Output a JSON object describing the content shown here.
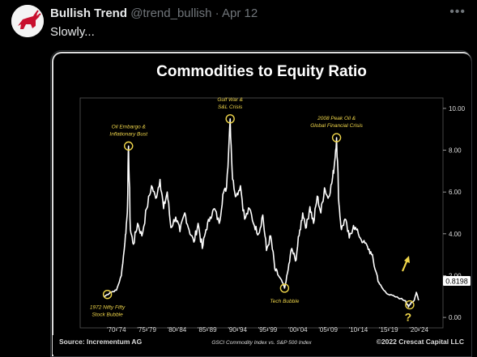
{
  "tweet": {
    "author_name": "Bullish Trend",
    "handle": "@trend_bullish",
    "separator": "·",
    "date": "Apr 12",
    "text": "Slowly...",
    "more_icon": "more-icon"
  },
  "chart_data": {
    "type": "line",
    "title": "Commodities to Equity Ratio",
    "xlabel": "GSCI Commodity Index vs. S&P 500 Index",
    "source": "Source: Incrementum AG",
    "copyright": "©2022 Crescat Capital LLC",
    "x_ticks": [
      "'70-'74",
      "'75-'79",
      "'80-'84",
      "'85-'89",
      "'90-'94",
      "'95-'99",
      "'00-'04",
      "'05-'09",
      "'10-'14",
      "'15-'19",
      "'20-'24"
    ],
    "y_ticks": [
      "10.00",
      "8.00",
      "6.00",
      "4.00",
      "2.00",
      "0.00"
    ],
    "ylim": [
      -0.5,
      10.5
    ],
    "current_value_label": "0.8198",
    "annotations": [
      {
        "text": "Oil Embargo & Inflationary Bust",
        "line1": "Oil Embargo &",
        "line2": "Inflationary Bust",
        "x": 1974.0,
        "y": 8.2
      },
      {
        "text": "Gulf War & S&L Crisis",
        "line1": "Gulf War &",
        "line2": "S&L Crisis",
        "x": 1990.8,
        "y": 9.5
      },
      {
        "text": "2008 Peak Oil & Global Financial Crisis",
        "line1": "2008 Peak Oil &",
        "line2": "Global Financial Crisis",
        "x": 2008.4,
        "y": 8.6
      },
      {
        "text": "1972 Nifty Fifty Stock Bubble",
        "line1": "1972 Nifty Fifty",
        "line2": "Stock Bubble",
        "x": 1970.5,
        "y": 1.1
      },
      {
        "text": "Tech Bubble",
        "line1": "Tech Bubble",
        "line2": "",
        "x": 1999.8,
        "y": 1.4
      },
      {
        "text": "?",
        "line1": "?",
        "line2": "",
        "x": 2020.5,
        "y": 0.6
      }
    ],
    "series": [
      {
        "x": [
          1970,
          1971,
          1972,
          1972.8,
          1973.4,
          1973.8,
          1974.0,
          1974.3,
          1974.8,
          1975.5,
          1976.2,
          1977.0,
          1977.8,
          1978.5,
          1979.2,
          1979.8,
          1980.4,
          1981.0,
          1981.8,
          1982.5,
          1983.3,
          1984.0,
          1984.8,
          1985.5,
          1986.2,
          1986.8,
          1987.5,
          1988.2,
          1989.0,
          1989.6,
          1990.2,
          1990.8,
          1991.2,
          1991.8,
          1992.5,
          1993.2,
          1994.0,
          1994.8,
          1995.5,
          1996.2,
          1996.8,
          1997.5,
          1998.2,
          1998.8,
          1999.4,
          1999.8,
          2000.4,
          2001.0,
          2001.6,
          2002.2,
          2002.8,
          2003.4,
          2004.0,
          2004.6,
          2005.2,
          2005.8,
          2006.4,
          2007.0,
          2007.6,
          2008.0,
          2008.4,
          2008.8,
          2009.2,
          2009.8,
          2010.5,
          2011.2,
          2012.0,
          2012.8,
          2013.5,
          2014.2,
          2014.9,
          2015.5,
          2016.2,
          2017.0,
          2018.0,
          2019.0,
          2019.8,
          2020.3,
          2020.7,
          2021.2,
          2021.6,
          2022.0
        ],
        "values": [
          1.0,
          1.2,
          1.3,
          2.0,
          3.6,
          5.0,
          8.2,
          4.2,
          3.5,
          4.5,
          3.9,
          5.2,
          6.3,
          5.7,
          6.6,
          5.2,
          6.0,
          4.3,
          4.8,
          4.1,
          5.0,
          4.2,
          3.6,
          4.5,
          3.3,
          4.2,
          4.8,
          5.2,
          4.5,
          5.9,
          6.2,
          9.5,
          6.6,
          5.8,
          6.3,
          4.7,
          5.2,
          4.4,
          4.0,
          4.9,
          3.2,
          3.9,
          2.3,
          2.0,
          1.7,
          1.4,
          2.3,
          3.3,
          2.7,
          3.9,
          5.0,
          4.3,
          5.3,
          4.5,
          5.8,
          5.0,
          6.2,
          5.7,
          6.4,
          7.2,
          8.6,
          5.4,
          4.2,
          4.7,
          3.8,
          4.4,
          4.0,
          3.6,
          3.4,
          3.0,
          2.2,
          1.6,
          1.3,
          1.1,
          1.0,
          0.9,
          0.8,
          0.5,
          0.7,
          0.8,
          1.2,
          0.82
        ]
      }
    ],
    "xlim": [
      1966,
      2026
    ]
  },
  "colors": {
    "annotation": "#f0d64a",
    "line": "#ffffff",
    "axis": "#bbbbbb"
  }
}
